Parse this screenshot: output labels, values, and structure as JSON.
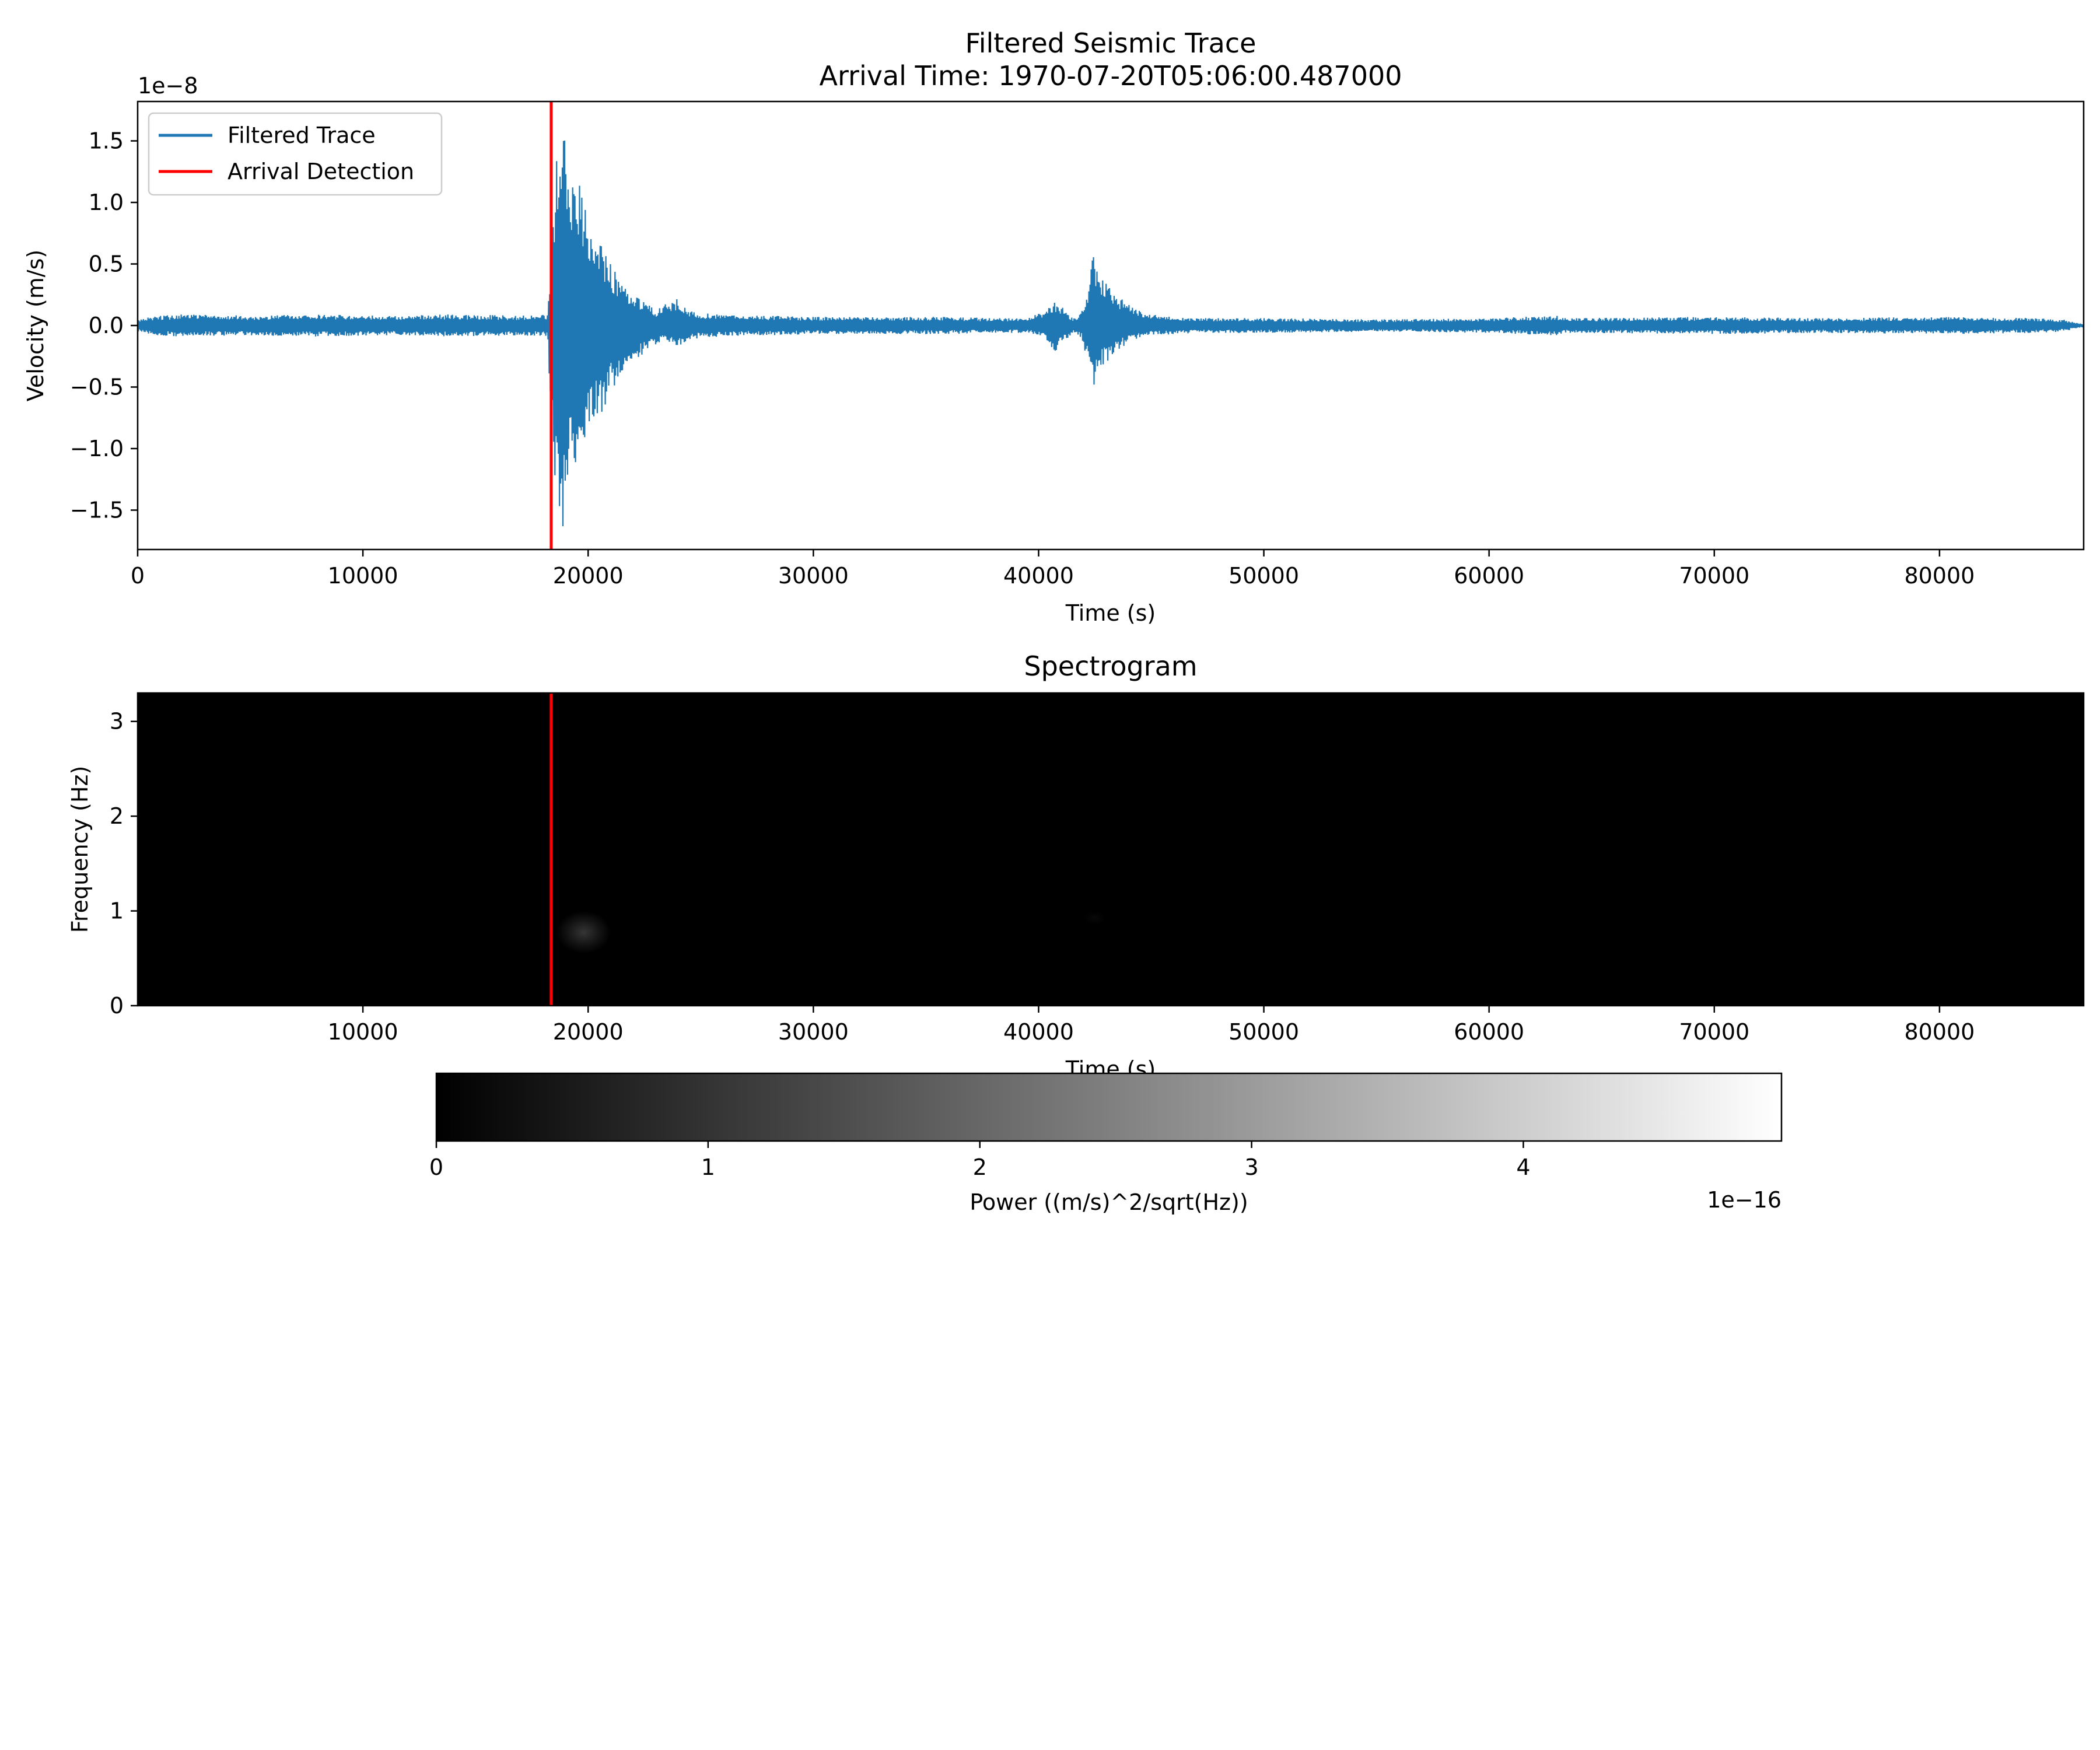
{
  "chart_data": [
    {
      "type": "line",
      "title": "Filtered Seismic Trace",
      "subtitle": "Arrival Time: 1970-07-20T05:06:00.487000",
      "xlabel": "Time (s)",
      "ylabel": "Velocity (m/s)",
      "xlim": [
        0,
        86400
      ],
      "ylim": [
        -1.82e-08,
        1.82e-08
      ],
      "y_offset_label": "1e−8",
      "xticks": [
        0,
        10000,
        20000,
        30000,
        40000,
        50000,
        60000,
        70000,
        80000
      ],
      "xtick_labels": [
        "0",
        "10000",
        "20000",
        "30000",
        "40000",
        "50000",
        "60000",
        "70000",
        "80000"
      ],
      "yticks": [
        -1.5e-08,
        -1e-08,
        -5e-09,
        0,
        5e-09,
        1e-08,
        1.5e-08
      ],
      "ytick_labels": [
        "−1.5",
        "−1.0",
        "−0.5",
        "0.0",
        "0.5",
        "1.0",
        "1.5"
      ],
      "legend_position": "upper-left",
      "grid": false,
      "series": [
        {
          "name": "Filtered Trace",
          "color": "#1f77b4",
          "envelope": {
            "t": [
              0,
              800,
              2000,
              5000,
              8000,
              11000,
              14000,
              17000,
              18200,
              18350,
              18600,
              18900,
              19200,
              19600,
              20000,
              20500,
              21000,
              21500,
              22000,
              22500,
              23000,
              23500,
              24000,
              24500,
              25000,
              26000,
              27000,
              28000,
              30000,
              33000,
              36000,
              38000,
              39500,
              40300,
              40700,
              41100,
              41500,
              41900,
              42200,
              42400,
              42600,
              42900,
              43300,
              43700,
              44100,
              44500,
              45000,
              46000,
              47000,
              50000,
              55000,
              60000,
              63000,
              63500,
              64000,
              70000,
              75000,
              80000,
              84000,
              85500,
              86400
            ],
            "upper": [
              5e-10,
              8e-10,
              9e-10,
              8e-10,
              9e-10,
              8e-10,
              9e-10,
              8e-10,
              9e-10,
              6e-09,
              1.65e-08,
              1.55e-08,
              1.35e-08,
              1.15e-08,
              9.5e-09,
              7e-09,
              5e-09,
              3.5e-09,
              2.8e-09,
              2e-09,
              1.2e-09,
              1.8e-09,
              2.2e-09,
              1.2e-09,
              1e-09,
              9e-10,
              8e-10,
              8e-10,
              7e-10,
              7e-10,
              7e-10,
              6e-10,
              6e-10,
              1.2e-09,
              2e-09,
              1.4e-09,
              6e-10,
              1e-09,
              3e-09,
              6e-09,
              4.5e-09,
              3.8e-09,
              3e-09,
              2.2e-09,
              1.6e-09,
              1.2e-09,
              9e-10,
              7e-10,
              6e-10,
              6e-10,
              5e-10,
              6e-10,
              8e-10,
              6e-10,
              6e-10,
              7e-10,
              6e-10,
              7e-10,
              6e-10,
              5e-10,
              1e-10
            ],
            "lower": [
              -5e-10,
              -8e-10,
              -9e-10,
              -8e-10,
              -9e-10,
              -8e-10,
              -9e-10,
              -8e-10,
              -9e-10,
              -8e-09,
              -1.6e-08,
              -1.68e-08,
              -1.25e-08,
              -1.05e-08,
              -9e-09,
              -7.5e-09,
              -5.5e-09,
              -4e-09,
              -3e-09,
              -2.2e-09,
              -1.6e-09,
              -1.2e-09,
              -1.8e-09,
              -1.2e-09,
              -1e-09,
              -9e-10,
              -8e-10,
              -8e-10,
              -7e-10,
              -7e-10,
              -7e-10,
              -6e-10,
              -6e-10,
              -1e-09,
              -2.2e-09,
              -1.4e-09,
              -6e-10,
              -1e-09,
              -3e-09,
              -5.5e-09,
              -4e-09,
              -3.2e-09,
              -2.5e-09,
              -1.8e-09,
              -1.3e-09,
              -1e-09,
              -8e-10,
              -7e-10,
              -6e-10,
              -6e-10,
              -5e-10,
              -6e-10,
              -8e-10,
              -6e-10,
              -6e-10,
              -7e-10,
              -6e-10,
              -7e-10,
              -6e-10,
              -5e-10,
              -1e-10
            ]
          }
        },
        {
          "name": "Arrival Detection",
          "color": "#ff0000",
          "type": "vline",
          "x": 18360.487
        }
      ]
    },
    {
      "type": "heatmap",
      "title": "Spectrogram",
      "xlabel": "Time (s)",
      "ylabel": "Frequency (Hz)",
      "xlim": [
        0,
        86400
      ],
      "ylim": [
        0,
        3.3
      ],
      "xticks": [
        10000,
        20000,
        30000,
        40000,
        50000,
        60000,
        70000,
        80000
      ],
      "xtick_labels": [
        "10000",
        "20000",
        "30000",
        "40000",
        "50000",
        "60000",
        "70000",
        "80000"
      ],
      "yticks": [
        0,
        1,
        2,
        3
      ],
      "ytick_labels": [
        "0",
        "1",
        "2",
        "3"
      ],
      "colormap": "gray",
      "background_color": "#000000",
      "arrival_line": {
        "x": 18360.487,
        "color": "#ff0000"
      },
      "features": [
        {
          "t_range": [
            18600,
            21000
          ],
          "f_range": [
            0.55,
            1.0
          ],
          "peak_power": 9.5e-17
        },
        {
          "t_range": [
            42000,
            43000
          ],
          "f_range": [
            0.85,
            1.0
          ],
          "peak_power": 1.5e-17
        }
      ],
      "colorbar": {
        "label": "Power ((m/s)^2/sqrt(Hz))",
        "range": [
          0,
          4.95e-16
        ],
        "ticks": [
          0,
          1e-16,
          2e-16,
          3e-16,
          4e-16
        ],
        "tick_labels": [
          "0",
          "1",
          "2",
          "3",
          "4"
        ],
        "offset_label": "1e−16"
      }
    }
  ]
}
